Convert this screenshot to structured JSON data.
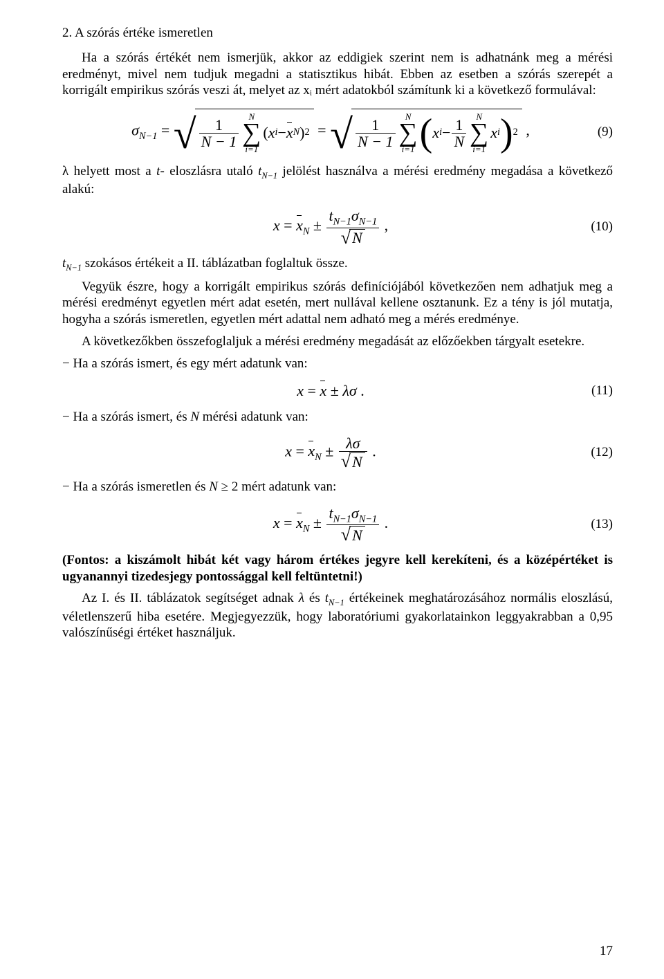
{
  "colors": {
    "text": "#000000",
    "background": "#ffffff"
  },
  "typography": {
    "body_family": "Times New Roman",
    "body_size_pt": 12,
    "eq_size_pt": 14
  },
  "heading": "2. A szórás értéke ismeretlen",
  "para1": "Ha a szórás értékét nem ismerjük, akkor az eddigiek szerint nem is adhatnánk meg a mérési eredményt, mivel nem tudjuk megadni a statisztikus hibát. Ebben az esetben a szórás szerepét a korrigált empirikus szórás veszi át, melyet az xᵢ mért adatokból számítunk ki a következő formulával:",
  "eq9": {
    "number": "(9)",
    "sigma_label": "σ",
    "sigma_sub": "N−1",
    "eq_sign": "=",
    "frac1_num": "1",
    "frac1_den": "N − 1",
    "sum_top": "N",
    "sum_bot": "i=1",
    "lpar": "(",
    "xi": "x",
    "xi_sub": "i",
    "minus": "−",
    "xbar": "x",
    "xbar_sub": "N",
    "rpar": ")",
    "pow2": "2",
    "frac2_num": "1",
    "frac2_den": "N",
    "comma": ","
  },
  "para2a": "λ helyett most a ",
  "para2b": "t",
  "para2c": "- eloszlásra utaló ",
  "para2d": "t",
  "para2d_sub": "N−1",
  "para2e": " jelölést használva a mérési eredmény megadása a következő alakú:",
  "eq10": {
    "number": "(10)",
    "lhs": "x",
    "eq": "=",
    "xbar": "x",
    "xbar_sub": "N",
    "pm": "±",
    "t": "t",
    "t_sub": "N−1",
    "sig": "σ",
    "sig_sub": "N−1",
    "den": "N",
    "comma": ","
  },
  "para3_a": "t",
  "para3_a_sub": "N−1",
  "para3_b": " szokásos értékeit a II. táblázatban foglaltuk össze.",
  "para3_c": "Vegyük észre, hogy a korrigált empirikus szórás definíciójából következően nem adhatjuk meg a mérési eredményt egyetlen mért adat esetén, mert nullával kellene osztanunk. Ez a tény is jól mutatja, hogyha a szórás ismeretlen, egyetlen mért adattal nem adható meg a mérés eredménye.",
  "para3_d": "A következőkben összefoglaljuk a mérési eredmény megadását az előzőekben tárgyalt esetekre.",
  "bullet1": "− Ha a szórás ismert, és egy mért adatunk van:",
  "eq11": {
    "number": "(11)",
    "lhs": "x",
    "eq": "=",
    "xbar": "x",
    "pm": "±",
    "lam": "λσ",
    "dot": "."
  },
  "bullet2_a": "− Ha a szórás ismert, és ",
  "bullet2_b": "N",
  "bullet2_c": " mérési adatunk van:",
  "eq12": {
    "number": "(12)",
    "lhs": "x",
    "eq": "=",
    "xbar": "x",
    "xbar_sub": "N",
    "pm": "±",
    "num": "λσ",
    "den": "N",
    "dot": "."
  },
  "bullet3_a": "− Ha a szórás ismeretlen és ",
  "bullet3_b": "N",
  "bullet3_c": " ≥ 2 mért adatunk van:",
  "eq13": {
    "number": "(13)",
    "lhs": "x",
    "eq": "=",
    "xbar": "x",
    "xbar_sub": "N",
    "pm": "±",
    "t": "t",
    "t_sub": "N−1",
    "sig": "σ",
    "sig_sub": "N−1",
    "den": "N",
    "dot": "."
  },
  "note_bold": "(Fontos: a kiszámolt hibát két vagy három értékes jegyre kell kerekíteni, és a középértéket is ugyanannyi tizedesjegy pontossággal kell feltüntetni!)",
  "para4_a": "Az I. és II. táblázatok segítséget adnak ",
  "para4_lam": "λ",
  "para4_b": " és ",
  "para4_t": "t",
  "para4_t_sub": "N−1",
  "para4_c": " értékeinek meghatározásához normális eloszlású, véletlenszerű hiba esetére. Megjegyezzük, hogy laboratóriumi gyakorlatainkon leggyakrabban a 0,95 valószínűségi értéket használjuk.",
  "page_number": "17"
}
